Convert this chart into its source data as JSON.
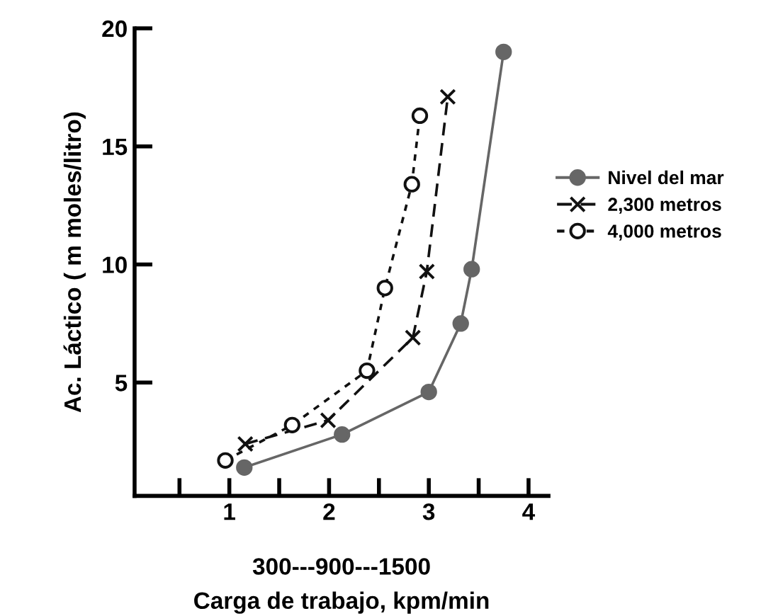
{
  "chart_data": {
    "type": "line",
    "xlabel": "Carga de trabajo, kpm/min",
    "ylabel": "Ac. Láctico ( m moles/litro)",
    "annotations": [
      "300---900---1500"
    ],
    "xlim": [
      0.05,
      4.2
    ],
    "ylim": [
      0.2,
      20
    ],
    "xticks": [
      {
        "value": 0.5,
        "label": null
      },
      1,
      {
        "value": 1.5,
        "label": null
      },
      2,
      {
        "value": 2.5,
        "label": null
      },
      3,
      {
        "value": 3.5,
        "label": null
      },
      4
    ],
    "yticks": [
      5,
      10,
      15,
      20
    ],
    "grid": false,
    "legend": "right",
    "series": [
      {
        "name": "Nivel del mar",
        "color": "#666666",
        "marker": "circle",
        "line_style": "solid",
        "x": [
          1.15,
          2.13,
          3.0,
          3.32,
          3.43,
          3.75
        ],
        "values": [
          1.4,
          2.8,
          4.6,
          7.5,
          9.8,
          19.0
        ]
      },
      {
        "name": "2,300 metros",
        "color": "#111111",
        "marker": "cross",
        "line_style": "dashed",
        "x": [
          1.16,
          1.99,
          2.84,
          2.98,
          3.19
        ],
        "values": [
          2.4,
          3.4,
          6.9,
          9.7,
          17.1
        ]
      },
      {
        "name": "4,000 metros",
        "color": "#111111",
        "marker": "circle",
        "line_style": "dotted",
        "x": [
          0.96,
          1.63,
          2.38,
          2.56,
          2.83,
          2.91
        ],
        "values": [
          1.7,
          3.2,
          5.5,
          9.0,
          13.4,
          16.3
        ]
      }
    ]
  }
}
